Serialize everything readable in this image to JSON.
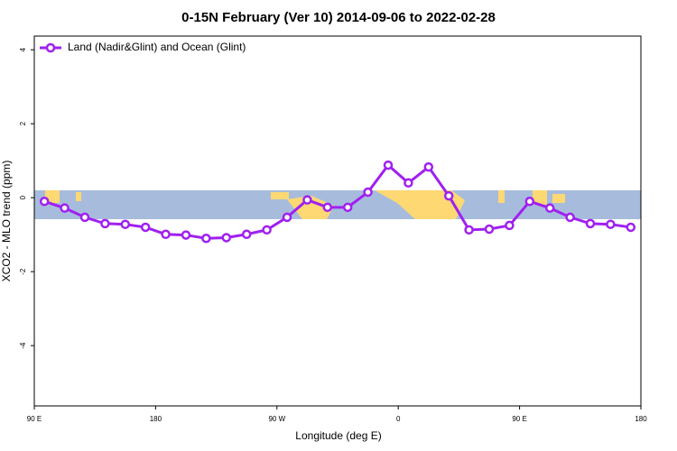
{
  "chart_data": {
    "type": "line",
    "title": "0-15N February (Ver 10)   2014-09-06 to 2022-02-28",
    "xlabel": "Longitude (deg E)",
    "ylabel": "XCO2 - MLO trend (ppm)",
    "x": [
      97.5,
      112.5,
      127.5,
      142.5,
      157.5,
      172.5,
      187.5,
      202.5,
      217.5,
      232.5,
      247.5,
      262.5,
      277.5,
      292.5,
      307.5,
      322.5,
      337.5,
      352.5,
      367.5,
      382.5,
      397.5,
      412.5,
      427.5,
      442.5,
      457.5,
      472.5,
      487.5,
      502.5,
      517.5,
      532.5
    ],
    "series": [
      {
        "name": "Land (Nadir&Glint) and Ocean (Glint)",
        "color": "#a020f0",
        "values": [
          -0.1,
          -0.28,
          -0.53,
          -0.7,
          -0.72,
          -0.8,
          -0.99,
          -1.01,
          -1.1,
          -1.08,
          -0.99,
          -0.87,
          -0.53,
          -0.06,
          -0.26,
          -0.26,
          0.15,
          0.88,
          0.4,
          0.83,
          0.05,
          -0.87,
          -0.85,
          -0.75,
          -0.1,
          -0.28,
          -0.53,
          -0.7,
          -0.72,
          -0.8
        ]
      }
    ],
    "xlim": [
      90,
      540
    ],
    "xticks": [
      {
        "value": 90,
        "label": "90 E"
      },
      {
        "value": 180,
        "label": "180"
      },
      {
        "value": 270,
        "label": "90 W"
      },
      {
        "value": 360,
        "label": "0"
      },
      {
        "value": 450,
        "label": "90 E"
      },
      {
        "value": 540,
        "label": "180"
      }
    ],
    "ylim": [
      -5.63,
      4.37
    ],
    "yticks": [
      -4,
      -2,
      0,
      2,
      4
    ],
    "legend": "upper left"
  }
}
